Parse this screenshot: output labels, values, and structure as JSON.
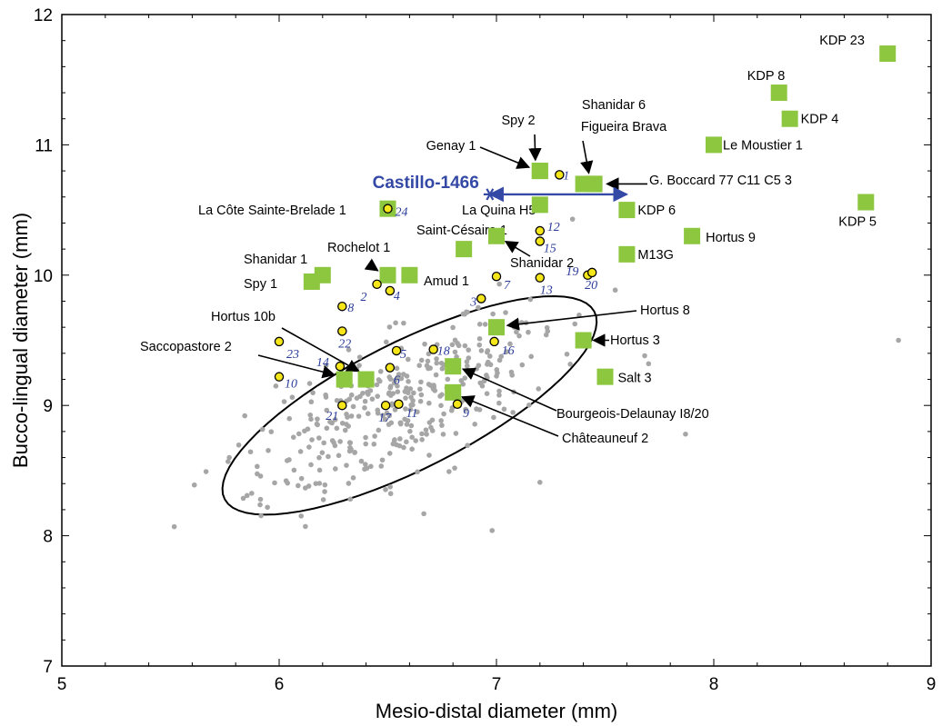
{
  "chart_data": {
    "type": "scatter",
    "title": "",
    "xlabel": "Mesio-distal diameter (mm)",
    "ylabel": "Bucco-lingual diameter (mm)",
    "xlim": [
      5,
      9
    ],
    "ylim": [
      7,
      12
    ],
    "xticks": [
      5,
      6,
      7,
      8,
      9
    ],
    "yticks": [
      7,
      8,
      9,
      10,
      11,
      12
    ],
    "grid": false,
    "colors": {
      "neanderthal": "#8dc63f",
      "numbered": "#f5e61a",
      "comparative": "#a6a6a6",
      "castillo": "#3449a6"
    },
    "comparative_points": [],
    "numbered_points": [
      {
        "label": "1",
        "x": 7.29,
        "y": 10.77
      },
      {
        "label": "2",
        "x": 6.45,
        "y": 9.93
      },
      {
        "label": "3",
        "x": 6.93,
        "y": 9.82
      },
      {
        "label": "4",
        "x": 6.51,
        "y": 9.88
      },
      {
        "label": "5",
        "x": 6.54,
        "y": 9.42
      },
      {
        "label": "6",
        "x": 6.51,
        "y": 9.29
      },
      {
        "label": "7",
        "x": 7.0,
        "y": 9.99
      },
      {
        "label": "8",
        "x": 6.29,
        "y": 9.76
      },
      {
        "label": "9",
        "x": 6.82,
        "y": 9.01
      },
      {
        "label": "10",
        "x": 6.0,
        "y": 9.22
      },
      {
        "label": "11",
        "x": 6.55,
        "y": 9.01
      },
      {
        "label": "12",
        "x": 7.2,
        "y": 10.34
      },
      {
        "label": "13",
        "x": 7.2,
        "y": 9.98
      },
      {
        "label": "14",
        "x": 6.28,
        "y": 9.3
      },
      {
        "label": "15",
        "x": 7.2,
        "y": 10.26
      },
      {
        "label": "16",
        "x": 6.99,
        "y": 9.49
      },
      {
        "label": "17",
        "x": 6.49,
        "y": 9.0
      },
      {
        "label": "18",
        "x": 6.71,
        "y": 9.43
      },
      {
        "label": "19",
        "x": 7.42,
        "y": 10.0
      },
      {
        "label": "20",
        "x": 7.44,
        "y": 10.02
      },
      {
        "label": "21",
        "x": 6.29,
        "y": 9.0
      },
      {
        "label": "22",
        "x": 6.29,
        "y": 9.57
      },
      {
        "label": "23",
        "x": 6.0,
        "y": 9.49
      },
      {
        "label": "24",
        "x": 6.5,
        "y": 10.51
      }
    ],
    "neanderthals": [
      {
        "label": "KDP 23",
        "x": 8.8,
        "y": 11.7
      },
      {
        "label": "KDP 8",
        "x": 8.3,
        "y": 11.4
      },
      {
        "label": "KDP 4",
        "x": 8.35,
        "y": 11.2
      },
      {
        "label": "Le Moustier 1",
        "x": 8.0,
        "y": 11.0
      },
      {
        "label": "KDP 5",
        "x": 8.7,
        "y": 10.56
      },
      {
        "label": "Spy 2",
        "x": 7.2,
        "y": 10.8
      },
      {
        "label": "Genay 1",
        "x": 7.2,
        "y": 10.8
      },
      {
        "label": "Shanidar 6",
        "x": 7.4,
        "y": 10.7
      },
      {
        "label": "Figueira Brava",
        "x": 7.45,
        "y": 10.7
      },
      {
        "label": "G. Boccard 77 C11 C5 3",
        "x": 7.45,
        "y": 10.7
      },
      {
        "label": "La Quina H5",
        "x": 7.2,
        "y": 10.54
      },
      {
        "label": "KDP 6",
        "x": 7.6,
        "y": 10.5
      },
      {
        "label": "La Côte Sainte-Brelade 1",
        "x": 6.5,
        "y": 10.51
      },
      {
        "label": "Hortus 9",
        "x": 7.9,
        "y": 10.3
      },
      {
        "label": "Saint-Césaire 1",
        "x": 6.85,
        "y": 10.2
      },
      {
        "label": "Shanidar 2",
        "x": 7.0,
        "y": 10.3
      },
      {
        "label": "M13G",
        "x": 7.6,
        "y": 10.16
      },
      {
        "label": "Shanidar 1",
        "x": 6.2,
        "y": 10.0
      },
      {
        "label": "Spy 1",
        "x": 6.15,
        "y": 9.95
      },
      {
        "label": "Rochelot 1",
        "x": 6.5,
        "y": 10.0
      },
      {
        "label": "Amud 1",
        "x": 6.6,
        "y": 10.0
      },
      {
        "label": "Hortus 8",
        "x": 7.0,
        "y": 9.6
      },
      {
        "label": "Hortus 3",
        "x": 7.4,
        "y": 9.5
      },
      {
        "label": "Hortus 10b",
        "x": 6.4,
        "y": 9.2
      },
      {
        "label": "Saccopastore 2",
        "x": 6.3,
        "y": 9.2
      },
      {
        "label": "Salt 3",
        "x": 7.5,
        "y": 9.22
      },
      {
        "label": "Bourgeois-Delaunay I8/20",
        "x": 6.8,
        "y": 9.3
      },
      {
        "label": "Châteauneuf 2",
        "x": 6.8,
        "y": 9.1
      }
    ],
    "castillo": {
      "label": "Castillo-1466",
      "x": 6.97,
      "y": 10.62,
      "range_x": [
        6.97,
        7.6
      ]
    },
    "ellipse": {
      "cx": 6.6,
      "cy": 9.0,
      "rx": 1.13,
      "ry": 0.41,
      "angle_deg": 44
    }
  }
}
